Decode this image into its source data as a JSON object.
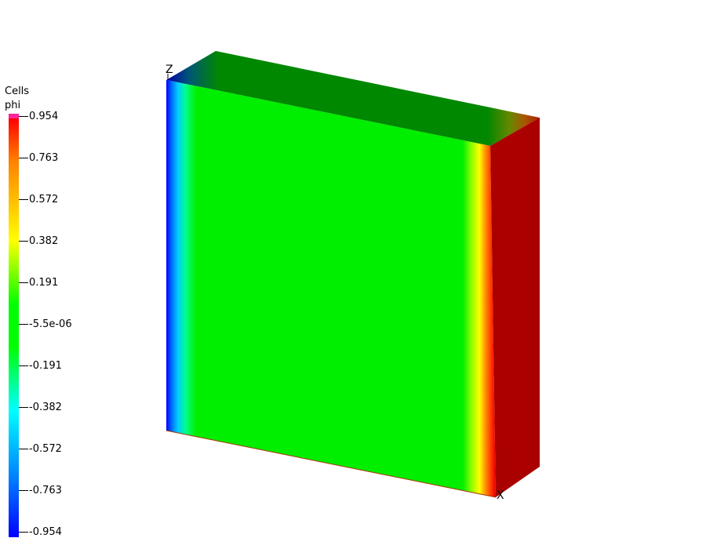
{
  "legend": {
    "title_line1": "Cells",
    "title_line2": "phi",
    "ticks": [
      "0.954",
      "0.763",
      "0.572",
      "0.382",
      "0.191",
      "-5.5e-06",
      "-0.191",
      "-0.382",
      "-0.572",
      "-0.763",
      "-0.954"
    ]
  },
  "axes": {
    "z_label": "Z",
    "x_label": "X"
  },
  "colors": {
    "front_green": "#00ee00",
    "top_green": "#008800",
    "right_red": "#aa0000",
    "blue": "#0000ff",
    "cyan": "#00ccff",
    "yellow": "#ffff00",
    "orange": "#ff6600"
  }
}
